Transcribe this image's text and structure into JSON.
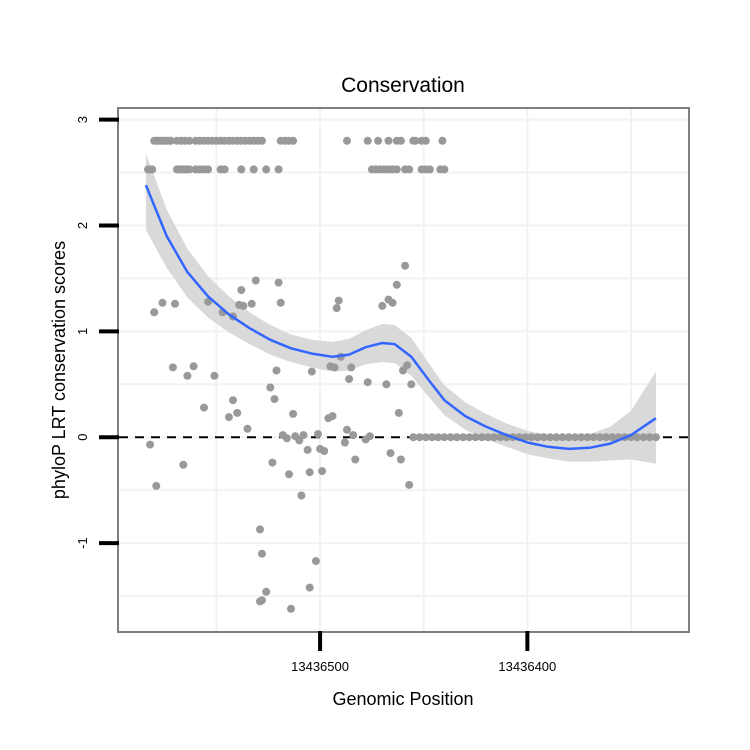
{
  "chart_data": {
    "type": "scatter",
    "title": "Conservation",
    "xlabel": "Genomic Position",
    "ylabel": "phyloP LRT conservation scores",
    "x_reversed": true,
    "xlim": [
      13436597.0,
      13436322.5
    ],
    "ylim": [
      -1.83,
      3.1
    ],
    "x_ticks": [
      13436500,
      13436400
    ],
    "x_tick_labels": [
      "13436500",
      "13436400"
    ],
    "y_ticks": [
      -1,
      0,
      1,
      2,
      3
    ],
    "y_tick_labels": [
      "-1",
      "0",
      "1",
      "2",
      "3"
    ],
    "grid": true,
    "reference_line": {
      "y": 0,
      "style": "dashed"
    },
    "colors": {
      "points": "#999999",
      "smooth_line": "#3366FF",
      "confidence_band": "#D9D9D9",
      "panel_border": "#7F7F7F",
      "grid": "#F2F2F2"
    },
    "series": [
      {
        "points": [
          [
            13436583,
            2.53
          ],
          [
            13436582,
            2.53
          ],
          [
            13436581,
            2.53
          ],
          [
            13436580,
            2.8
          ],
          [
            13436579,
            2.8
          ],
          [
            13436578,
            2.8
          ],
          [
            13436577,
            2.8
          ],
          [
            13436576,
            2.8
          ],
          [
            13436575,
            2.8
          ],
          [
            13436574,
            2.8
          ],
          [
            13436573,
            2.8
          ],
          [
            13436572,
            2.8
          ],
          [
            13436569,
            2.53
          ],
          [
            13436568,
            2.53
          ],
          [
            13436567,
            2.53
          ],
          [
            13436566,
            2.53
          ],
          [
            13436565,
            2.53
          ],
          [
            13436564,
            2.53
          ],
          [
            13436563,
            2.53
          ],
          [
            13436569,
            2.8
          ],
          [
            13436567,
            2.8
          ],
          [
            13436565,
            2.8
          ],
          [
            13436563,
            2.8
          ],
          [
            13436560,
            2.8
          ],
          [
            13436558,
            2.8
          ],
          [
            13436556,
            2.8
          ],
          [
            13436554,
            2.8
          ],
          [
            13436552,
            2.8
          ],
          [
            13436550,
            2.8
          ],
          [
            13436548,
            2.8
          ],
          [
            13436546,
            2.8
          ],
          [
            13436544,
            2.8
          ],
          [
            13436542,
            2.8
          ],
          [
            13436540,
            2.8
          ],
          [
            13436538,
            2.8
          ],
          [
            13436536,
            2.8
          ],
          [
            13436534,
            2.8
          ],
          [
            13436532,
            2.8
          ],
          [
            13436530,
            2.8
          ],
          [
            13436528,
            2.8
          ],
          [
            13436560,
            2.53
          ],
          [
            13436558,
            2.53
          ],
          [
            13436556,
            2.53
          ],
          [
            13436554,
            2.53
          ],
          [
            13436548,
            2.53
          ],
          [
            13436546,
            2.53
          ],
          [
            13436538,
            2.53
          ],
          [
            13436532,
            2.53
          ],
          [
            13436526,
            2.53
          ],
          [
            13436520,
            2.53
          ],
          [
            13436519,
            2.8
          ],
          [
            13436517,
            2.8
          ],
          [
            13436515,
            2.8
          ],
          [
            13436513,
            2.8
          ],
          [
            13436487,
            2.8
          ],
          [
            13436477,
            2.8
          ],
          [
            13436475,
            2.53
          ],
          [
            13436473,
            2.53
          ],
          [
            13436471,
            2.53
          ],
          [
            13436469,
            2.53
          ],
          [
            13436467,
            2.53
          ],
          [
            13436465,
            2.53
          ],
          [
            13436463,
            2.53
          ],
          [
            13436472,
            2.8
          ],
          [
            13436467,
            2.8
          ],
          [
            13436463,
            2.8
          ],
          [
            13436461,
            2.8
          ],
          [
            13436455,
            2.8
          ],
          [
            13436454,
            2.8
          ],
          [
            13436451,
            2.8
          ],
          [
            13436449,
            2.8
          ],
          [
            13436441,
            2.8
          ],
          [
            13436459,
            2.53
          ],
          [
            13436457,
            2.53
          ],
          [
            13436451,
            2.53
          ],
          [
            13436449,
            2.53
          ],
          [
            13436447,
            2.53
          ],
          [
            13436442,
            2.53
          ],
          [
            13436440,
            2.53
          ],
          [
            13436582,
            -0.07
          ],
          [
            13436579,
            -0.46
          ],
          [
            13436580,
            1.18
          ],
          [
            13436576,
            1.27
          ],
          [
            13436571,
            0.66
          ],
          [
            13436570,
            1.26
          ],
          [
            13436566,
            -0.26
          ],
          [
            13436564,
            0.58
          ],
          [
            13436561,
            0.67
          ],
          [
            13436556,
            0.28
          ],
          [
            13436554,
            1.28
          ],
          [
            13436551,
            0.58
          ],
          [
            13436547,
            1.18
          ],
          [
            13436544,
            0.19
          ],
          [
            13436542,
            0.35
          ],
          [
            13436542,
            1.14
          ],
          [
            13436540,
            0.23
          ],
          [
            13436539,
            1.25
          ],
          [
            13436537,
            1.24
          ],
          [
            13436538,
            1.39
          ],
          [
            13436535,
            0.08
          ],
          [
            13436533,
            1.26
          ],
          [
            13436531,
            1.48
          ],
          [
            13436529,
            -0.87
          ],
          [
            13436529,
            -1.55
          ],
          [
            13436528,
            -1.54
          ],
          [
            13436528,
            -1.1
          ],
          [
            13436526,
            -1.46
          ],
          [
            13436524,
            0.47
          ],
          [
            13436523,
            -0.24
          ],
          [
            13436522,
            0.36
          ],
          [
            13436521,
            0.63
          ],
          [
            13436520,
            1.46
          ],
          [
            13436519,
            1.27
          ],
          [
            13436518,
            0.02
          ],
          [
            13436516,
            -0.01
          ],
          [
            13436515,
            -0.35
          ],
          [
            13436514,
            -1.62
          ],
          [
            13436513,
            0.22
          ],
          [
            13436512,
            0.01
          ],
          [
            13436510,
            -0.03
          ],
          [
            13436509,
            -0.55
          ],
          [
            13436508,
            0.02
          ],
          [
            13436506,
            -0.12
          ],
          [
            13436505,
            -1.42
          ],
          [
            13436505,
            -0.33
          ],
          [
            13436504,
            0.62
          ],
          [
            13436502,
            -1.17
          ],
          [
            13436501,
            0.03
          ],
          [
            13436500,
            -0.11
          ],
          [
            13436499,
            -0.32
          ],
          [
            13436498,
            -0.13
          ],
          [
            13436496,
            0.18
          ],
          [
            13436495,
            0.67
          ],
          [
            13436494,
            0.2
          ],
          [
            13436493,
            0.66
          ],
          [
            13436492,
            1.22
          ],
          [
            13436491,
            1.29
          ],
          [
            13436490,
            0.76
          ],
          [
            13436488,
            -0.05
          ],
          [
            13436487,
            0.07
          ],
          [
            13436486,
            0.55
          ],
          [
            13436485,
            0.66
          ],
          [
            13436484,
            0.02
          ],
          [
            13436483,
            -0.21
          ],
          [
            13436478,
            -0.02
          ],
          [
            13436477,
            0.52
          ],
          [
            13436476,
            0.01
          ],
          [
            13436470,
            1.24
          ],
          [
            13436468,
            0.5
          ],
          [
            13436467,
            1.3
          ],
          [
            13436466,
            -0.15
          ],
          [
            13436465,
            1.27
          ],
          [
            13436463,
            1.44
          ],
          [
            13436462,
            0.23
          ],
          [
            13436461,
            -0.21
          ],
          [
            13436460,
            0.63
          ],
          [
            13436459,
            1.62
          ],
          [
            13436458,
            0.68
          ],
          [
            13436457,
            -0.45
          ],
          [
            13436456,
            0.5
          ],
          [
            13436455,
            0
          ],
          [
            13436452,
            0
          ],
          [
            13436449,
            0
          ],
          [
            13436446,
            0
          ],
          [
            13436443,
            0
          ],
          [
            13436440,
            0
          ],
          [
            13436437,
            0
          ],
          [
            13436434,
            0
          ],
          [
            13436431,
            0
          ],
          [
            13436428,
            0
          ],
          [
            13436425,
            0
          ],
          [
            13436422,
            0
          ],
          [
            13436419,
            0
          ],
          [
            13436416,
            0
          ],
          [
            13436413,
            0
          ],
          [
            13436410,
            0
          ],
          [
            13436407,
            0
          ],
          [
            13436404,
            0
          ],
          [
            13436401,
            0
          ],
          [
            13436398,
            0
          ],
          [
            13436395,
            0
          ],
          [
            13436392,
            0
          ],
          [
            13436389,
            0
          ],
          [
            13436386,
            0
          ],
          [
            13436383,
            0
          ],
          [
            13436380,
            0
          ],
          [
            13436377,
            0
          ],
          [
            13436374,
            0
          ],
          [
            13436371,
            0
          ],
          [
            13436368,
            0
          ],
          [
            13436365,
            0
          ],
          [
            13436362,
            0
          ],
          [
            13436359,
            0
          ],
          [
            13436356,
            0
          ],
          [
            13436353,
            0
          ],
          [
            13436350,
            0
          ],
          [
            13436347,
            0
          ],
          [
            13436344,
            0
          ],
          [
            13436341,
            0
          ],
          [
            13436338,
            0
          ]
        ],
        "smooth": [
          [
            13436584,
            2.38
          ],
          [
            13436574,
            1.9
          ],
          [
            13436564,
            1.56
          ],
          [
            13436554,
            1.33
          ],
          [
            13436544,
            1.16
          ],
          [
            13436534,
            1.03
          ],
          [
            13436524,
            0.92
          ],
          [
            13436514,
            0.84
          ],
          [
            13436504,
            0.79
          ],
          [
            13436494,
            0.76
          ],
          [
            13436486,
            0.78
          ],
          [
            13436478,
            0.85
          ],
          [
            13436470,
            0.89
          ],
          [
            13436464,
            0.88
          ],
          [
            13436456,
            0.76
          ],
          [
            13436448,
            0.55
          ],
          [
            13436440,
            0.35
          ],
          [
            13436430,
            0.2
          ],
          [
            13436420,
            0.1
          ],
          [
            13436410,
            0.02
          ],
          [
            13436400,
            -0.05
          ],
          [
            13436390,
            -0.09
          ],
          [
            13436380,
            -0.11
          ],
          [
            13436370,
            -0.1
          ],
          [
            13436360,
            -0.06
          ],
          [
            13436350,
            0.02
          ],
          [
            13436338,
            0.18
          ]
        ],
        "ci_upper": [
          [
            13436584,
            2.68
          ],
          [
            13436574,
            2.15
          ],
          [
            13436564,
            1.78
          ],
          [
            13436554,
            1.52
          ],
          [
            13436544,
            1.33
          ],
          [
            13436534,
            1.18
          ],
          [
            13436524,
            1.06
          ],
          [
            13436514,
            0.97
          ],
          [
            13436504,
            0.92
          ],
          [
            13436494,
            0.9
          ],
          [
            13436486,
            0.93
          ],
          [
            13436478,
            1.01
          ],
          [
            13436470,
            1.07
          ],
          [
            13436464,
            1.06
          ],
          [
            13436456,
            0.94
          ],
          [
            13436448,
            0.71
          ],
          [
            13436440,
            0.49
          ],
          [
            13436430,
            0.33
          ],
          [
            13436420,
            0.22
          ],
          [
            13436410,
            0.13
          ],
          [
            13436400,
            0.06
          ],
          [
            13436390,
            0.02
          ],
          [
            13436380,
            0.01
          ],
          [
            13436370,
            0.03
          ],
          [
            13436360,
            0.1
          ],
          [
            13436350,
            0.25
          ],
          [
            13436338,
            0.62
          ]
        ],
        "ci_lower": [
          [
            13436584,
            1.96
          ],
          [
            13436574,
            1.6
          ],
          [
            13436564,
            1.32
          ],
          [
            13436554,
            1.13
          ],
          [
            13436544,
            0.99
          ],
          [
            13436534,
            0.88
          ],
          [
            13436524,
            0.78
          ],
          [
            13436514,
            0.71
          ],
          [
            13436504,
            0.66
          ],
          [
            13436494,
            0.62
          ],
          [
            13436486,
            0.63
          ],
          [
            13436478,
            0.69
          ],
          [
            13436470,
            0.71
          ],
          [
            13436464,
            0.7
          ],
          [
            13436456,
            0.58
          ],
          [
            13436448,
            0.39
          ],
          [
            13436440,
            0.21
          ],
          [
            13436430,
            0.07
          ],
          [
            13436420,
            -0.02
          ],
          [
            13436410,
            -0.09
          ],
          [
            13436400,
            -0.16
          ],
          [
            13436390,
            -0.2
          ],
          [
            13436380,
            -0.23
          ],
          [
            13436370,
            -0.23
          ],
          [
            13436360,
            -0.22
          ],
          [
            13436350,
            -0.21
          ],
          [
            13436338,
            -0.25
          ]
        ]
      }
    ]
  }
}
